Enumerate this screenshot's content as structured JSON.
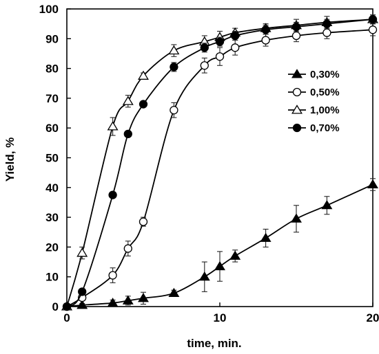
{
  "chart_data": {
    "type": "line",
    "title": "",
    "xlabel": "time, min.",
    "ylabel": "Yield, %",
    "xlim": [
      0,
      20
    ],
    "ylim": [
      0,
      100
    ],
    "xticks": [
      0,
      10,
      20
    ],
    "yticks": [
      0,
      10,
      20,
      30,
      40,
      50,
      60,
      70,
      80,
      90,
      100
    ],
    "grid": false,
    "legend_position": "right",
    "series": [
      {
        "name": "0,30%",
        "marker": "filled-triangle",
        "points": [
          {
            "x": 0,
            "y": 0,
            "err": 0
          },
          {
            "x": 1,
            "y": 0.5,
            "err": 0.5
          },
          {
            "x": 3,
            "y": 1.2,
            "err": 1
          },
          {
            "x": 4,
            "y": 2,
            "err": 1.5
          },
          {
            "x": 5,
            "y": 2.8,
            "err": 2
          },
          {
            "x": 7,
            "y": 4.5,
            "err": 1
          },
          {
            "x": 9,
            "y": 10,
            "err": 5
          },
          {
            "x": 10,
            "y": 13.5,
            "err": 5
          },
          {
            "x": 11,
            "y": 17,
            "err": 2
          },
          {
            "x": 13,
            "y": 23,
            "err": 3
          },
          {
            "x": 15,
            "y": 29.5,
            "err": 4.5
          },
          {
            "x": 17,
            "y": 34,
            "err": 3
          },
          {
            "x": 20,
            "y": 41,
            "err": 2
          }
        ]
      },
      {
        "name": "0,50%",
        "marker": "open-circle",
        "points": [
          {
            "x": 0,
            "y": 0,
            "err": 0
          },
          {
            "x": 1,
            "y": 3,
            "err": 1
          },
          {
            "x": 3,
            "y": 10.5,
            "err": 2.5
          },
          {
            "x": 4,
            "y": 19.5,
            "err": 2.5
          },
          {
            "x": 5,
            "y": 28.5,
            "err": 1.5
          },
          {
            "x": 7,
            "y": 66,
            "err": 2.5
          },
          {
            "x": 9,
            "y": 81,
            "err": 2.5
          },
          {
            "x": 10,
            "y": 84,
            "err": 3
          },
          {
            "x": 11,
            "y": 87,
            "err": 2.5
          },
          {
            "x": 13,
            "y": 89.5,
            "err": 2
          },
          {
            "x": 15,
            "y": 91,
            "err": 2
          },
          {
            "x": 17,
            "y": 92,
            "err": 2
          },
          {
            "x": 20,
            "y": 93,
            "err": 2
          }
        ]
      },
      {
        "name": "1,00%",
        "marker": "open-triangle",
        "points": [
          {
            "x": 0,
            "y": 0,
            "err": 0
          },
          {
            "x": 1,
            "y": 18,
            "err": 2
          },
          {
            "x": 3,
            "y": 60.5,
            "err": 3
          },
          {
            "x": 4,
            "y": 69,
            "err": 2
          },
          {
            "x": 5,
            "y": 77.5,
            "err": 1
          },
          {
            "x": 7,
            "y": 86,
            "err": 2
          },
          {
            "x": 9,
            "y": 89,
            "err": 2
          },
          {
            "x": 10,
            "y": 90.5,
            "err": 2
          },
          {
            "x": 11,
            "y": 92,
            "err": 1.5
          },
          {
            "x": 13,
            "y": 93.5,
            "err": 1.5
          },
          {
            "x": 15,
            "y": 94.5,
            "err": 2
          },
          {
            "x": 17,
            "y": 95.5,
            "err": 2
          },
          {
            "x": 20,
            "y": 96.5,
            "err": 1.5
          }
        ]
      },
      {
        "name": "0,70%",
        "marker": "filled-circle",
        "points": [
          {
            "x": 0,
            "y": 0,
            "err": 0
          },
          {
            "x": 1,
            "y": 5,
            "err": 0.5
          },
          {
            "x": 3,
            "y": 37.5,
            "err": 0.5
          },
          {
            "x": 4,
            "y": 58,
            "err": 0.5
          },
          {
            "x": 5,
            "y": 68,
            "err": 0.5
          },
          {
            "x": 7,
            "y": 80.5,
            "err": 1.5
          },
          {
            "x": 9,
            "y": 87,
            "err": 1.5
          },
          {
            "x": 10,
            "y": 89,
            "err": 1.5
          },
          {
            "x": 11,
            "y": 91,
            "err": 1.5
          },
          {
            "x": 13,
            "y": 93,
            "err": 1.5
          },
          {
            "x": 15,
            "y": 94,
            "err": 1.5
          },
          {
            "x": 17,
            "y": 95,
            "err": 1.5
          },
          {
            "x": 20,
            "y": 96.5,
            "err": 1.5
          }
        ]
      }
    ]
  }
}
